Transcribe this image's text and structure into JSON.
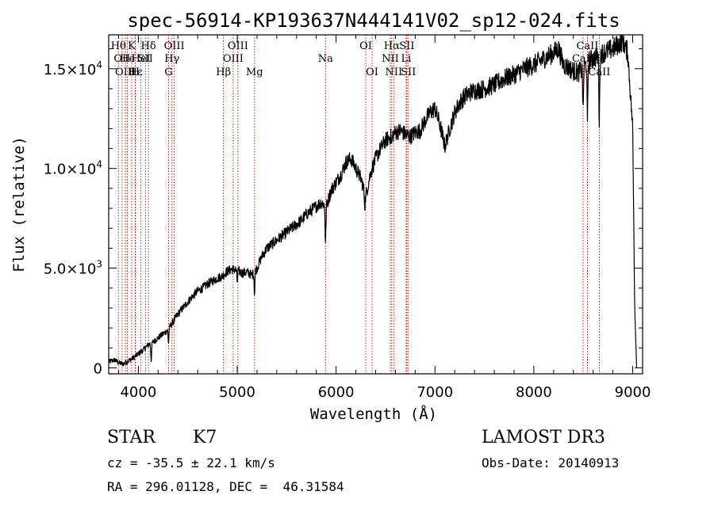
{
  "chart_data": {
    "type": "line",
    "title": "spec-56914-KP193637N444141V02_sp12-024.fits",
    "xlabel": "Wavelength (Å)",
    "ylabel": "Flux (relative)",
    "xlim": [
      3700,
      9100
    ],
    "ylim": [
      -300,
      16700
    ],
    "x_ticks": [
      4000,
      5000,
      6000,
      7000,
      8000,
      9000
    ],
    "x_tick_labels": [
      "4000",
      "5000",
      "6000",
      "7000",
      "8000",
      "9000"
    ],
    "y_ticks": [
      0,
      5000,
      10000,
      15000
    ],
    "y_tick_labels": [
      {
        "mantissa": "0",
        "exp": ""
      },
      {
        "mantissa": "5.0×10",
        "exp": "3"
      },
      {
        "mantissa": "1.0×10",
        "exp": "4"
      },
      {
        "mantissa": "1.5×10",
        "exp": "4"
      }
    ],
    "series": [
      {
        "name": "flux",
        "points": [
          [
            3700,
            300
          ],
          [
            3760,
            400
          ],
          [
            3800,
            250
          ],
          [
            3850,
            200
          ],
          [
            3900,
            350
          ],
          [
            3950,
            500
          ],
          [
            4000,
            700
          ],
          [
            4050,
            900
          ],
          [
            4100,
            1150
          ],
          [
            4150,
            1300
          ],
          [
            4200,
            1500
          ],
          [
            4250,
            1700
          ],
          [
            4300,
            1900
          ],
          [
            4350,
            2300
          ],
          [
            4400,
            2700
          ],
          [
            4450,
            3000
          ],
          [
            4500,
            3300
          ],
          [
            4550,
            3600
          ],
          [
            4600,
            3850
          ],
          [
            4650,
            4000
          ],
          [
            4700,
            4200
          ],
          [
            4750,
            4350
          ],
          [
            4800,
            4500
          ],
          [
            4850,
            4600
          ],
          [
            4900,
            4850
          ],
          [
            4950,
            4950
          ],
          [
            5000,
            4900
          ],
          [
            5050,
            4750
          ],
          [
            5100,
            4800
          ],
          [
            5150,
            4650
          ],
          [
            5200,
            5000
          ],
          [
            5250,
            5600
          ],
          [
            5300,
            6000
          ],
          [
            5350,
            6200
          ],
          [
            5400,
            6400
          ],
          [
            5450,
            6600
          ],
          [
            5500,
            6800
          ],
          [
            5550,
            7000
          ],
          [
            5600,
            7200
          ],
          [
            5650,
            7400
          ],
          [
            5700,
            7700
          ],
          [
            5750,
            7900
          ],
          [
            5800,
            8100
          ],
          [
            5850,
            8300
          ],
          [
            5900,
            8100
          ],
          [
            5950,
            8900
          ],
          [
            6000,
            9300
          ],
          [
            6050,
            9700
          ],
          [
            6100,
            10300
          ],
          [
            6150,
            10500
          ],
          [
            6200,
            10000
          ],
          [
            6250,
            9500
          ],
          [
            6300,
            8600
          ],
          [
            6350,
            9800
          ],
          [
            6400,
            10500
          ],
          [
            6450,
            11000
          ],
          [
            6500,
            11400
          ],
          [
            6550,
            11600
          ],
          [
            6600,
            11800
          ],
          [
            6650,
            11900
          ],
          [
            6700,
            11700
          ],
          [
            6750,
            11600
          ],
          [
            6800,
            11800
          ],
          [
            6850,
            11900
          ],
          [
            6900,
            12400
          ],
          [
            6950,
            12800
          ],
          [
            7000,
            13000
          ],
          [
            7050,
            12200
          ],
          [
            7100,
            11100
          ],
          [
            7150,
            12000
          ],
          [
            7200,
            12800
          ],
          [
            7250,
            13300
          ],
          [
            7300,
            13600
          ],
          [
            7350,
            13800
          ],
          [
            7400,
            13900
          ],
          [
            7500,
            14000
          ],
          [
            7600,
            14200
          ],
          [
            7700,
            14500
          ],
          [
            7800,
            14700
          ],
          [
            7900,
            15000
          ],
          [
            8000,
            15200
          ],
          [
            8100,
            15500
          ],
          [
            8200,
            15800
          ],
          [
            8250,
            16000
          ],
          [
            8300,
            15200
          ],
          [
            8400,
            14900
          ],
          [
            8450,
            14800
          ],
          [
            8500,
            15000
          ],
          [
            8550,
            15400
          ],
          [
            8600,
            15500
          ],
          [
            8700,
            15800
          ],
          [
            8800,
            16000
          ],
          [
            8900,
            16400
          ],
          [
            8950,
            15800
          ],
          [
            9000,
            12000
          ],
          [
            9020,
            3000
          ],
          [
            9040,
            0
          ]
        ],
        "features": [
          {
            "x": 4130,
            "depth": 900
          },
          {
            "x": 4305,
            "depth": 700
          },
          {
            "x": 5000,
            "depth": 600
          },
          {
            "x": 5175,
            "depth": 1100
          },
          {
            "x": 5893,
            "depth": 1900
          },
          {
            "x": 6290,
            "depth": 600
          },
          {
            "x": 6563,
            "depth": 400
          },
          {
            "x": 8498,
            "depth": 2200
          },
          {
            "x": 8542,
            "depth": 3200
          },
          {
            "x": 8662,
            "depth": 3400
          }
        ]
      }
    ],
    "line_markers": [
      {
        "x": 3798,
        "label": "Hθ",
        "row": 0
      },
      {
        "x": 3835,
        "label": "OII",
        "row": 1
      },
      {
        "x": 3869,
        "label": "OIII",
        "row": 2
      },
      {
        "x": 3889,
        "label": "He",
        "row": 1
      },
      {
        "x": 3933,
        "label": "K",
        "row": 0
      },
      {
        "x": 3968,
        "label": "H",
        "row": 2
      },
      {
        "x": 3970,
        "label": "Hε",
        "row": 2
      },
      {
        "x": 4026,
        "label": "HeI",
        "row": 1
      },
      {
        "x": 4072,
        "label": "SII",
        "row": 1
      },
      {
        "x": 4102,
        "label": "Hδ",
        "row": 0
      },
      {
        "x": 4305,
        "label": "G",
        "row": 2
      },
      {
        "x": 4340,
        "label": "Hγ",
        "row": 1
      },
      {
        "x": 4363,
        "label": "OIII",
        "row": 0
      },
      {
        "x": 4861,
        "label": "Hβ",
        "row": 2
      },
      {
        "x": 4959,
        "label": "OIII",
        "row": 1
      },
      {
        "x": 5007,
        "label": "OIII",
        "row": 0
      },
      {
        "x": 5175,
        "label": "Mg",
        "row": 2
      },
      {
        "x": 5893,
        "label": "Na",
        "row": 1
      },
      {
        "x": 6300,
        "label": "OI",
        "row": 0
      },
      {
        "x": 6364,
        "label": "OI",
        "row": 2
      },
      {
        "x": 6548,
        "label": "NII",
        "row": 1
      },
      {
        "x": 6563,
        "label": "Hα",
        "row": 0
      },
      {
        "x": 6583,
        "label": "NII",
        "row": 2
      },
      {
        "x": 6708,
        "label": "Li",
        "row": 1
      },
      {
        "x": 6716,
        "label": "SII",
        "row": 0
      },
      {
        "x": 6731,
        "label": "SII",
        "row": 2
      },
      {
        "x": 8498,
        "label": "CaII",
        "row": 1
      },
      {
        "x": 8542,
        "label": "CaII",
        "row": 0
      },
      {
        "x": 8662,
        "label": "CaII",
        "row": 2
      }
    ]
  },
  "info": {
    "class_label": "STAR",
    "subclass": "K7",
    "survey": "LAMOST DR3",
    "redshift": "cz = -35.5 ± 22.1 km/s",
    "obs_date": "Obs-Date: 20140913",
    "coords": "RA = 296.01128, DEC =  46.31584"
  },
  "colors": {
    "line_marker": "#c00000",
    "spectrum": "#000000"
  }
}
